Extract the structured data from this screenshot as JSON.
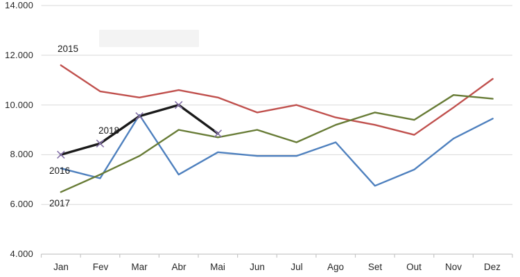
{
  "chart_data": {
    "type": "line",
    "title": "",
    "xlabel": "",
    "ylabel": "",
    "categories": [
      "Jan",
      "Fev",
      "Mar",
      "Abr",
      "Mai",
      "Jun",
      "Jul",
      "Ago",
      "Set",
      "Out",
      "Nov",
      "Dez"
    ],
    "series": [
      {
        "name": "2015",
        "color": "#C0504D",
        "line_width": 2.4,
        "marker": "none",
        "values": [
          11600,
          10550,
          10300,
          10600,
          10300,
          9700,
          10000,
          9500,
          9200,
          8800,
          9900,
          11050
        ]
      },
      {
        "name": "2016",
        "color": "#4E80BE",
        "line_width": 2.4,
        "marker": "none",
        "values": [
          7450,
          7050,
          9600,
          7200,
          8100,
          7950,
          7950,
          8500,
          6750,
          7400,
          8650,
          9450
        ]
      },
      {
        "name": "2017",
        "color": "#677B35",
        "line_width": 2.4,
        "marker": "none",
        "values": [
          6500,
          7200,
          7950,
          9000,
          8700,
          9000,
          8500,
          9200,
          9700,
          9400,
          10400,
          10250
        ]
      },
      {
        "name": "2018",
        "color": "#1A1A1A",
        "line_width": 3.4,
        "marker": "x",
        "marker_color": "#8470A8",
        "values": [
          8000,
          8450,
          9550,
          10000,
          8850
        ]
      }
    ],
    "y_axis": {
      "min": 4000,
      "max": 14000,
      "step": 2000,
      "tick_labels": [
        "14.000",
        "12.000",
        "10.000",
        "8.000",
        "6.000",
        "4.000"
      ]
    },
    "grid": true,
    "legend": "inline-labels-next-to-lines"
  }
}
